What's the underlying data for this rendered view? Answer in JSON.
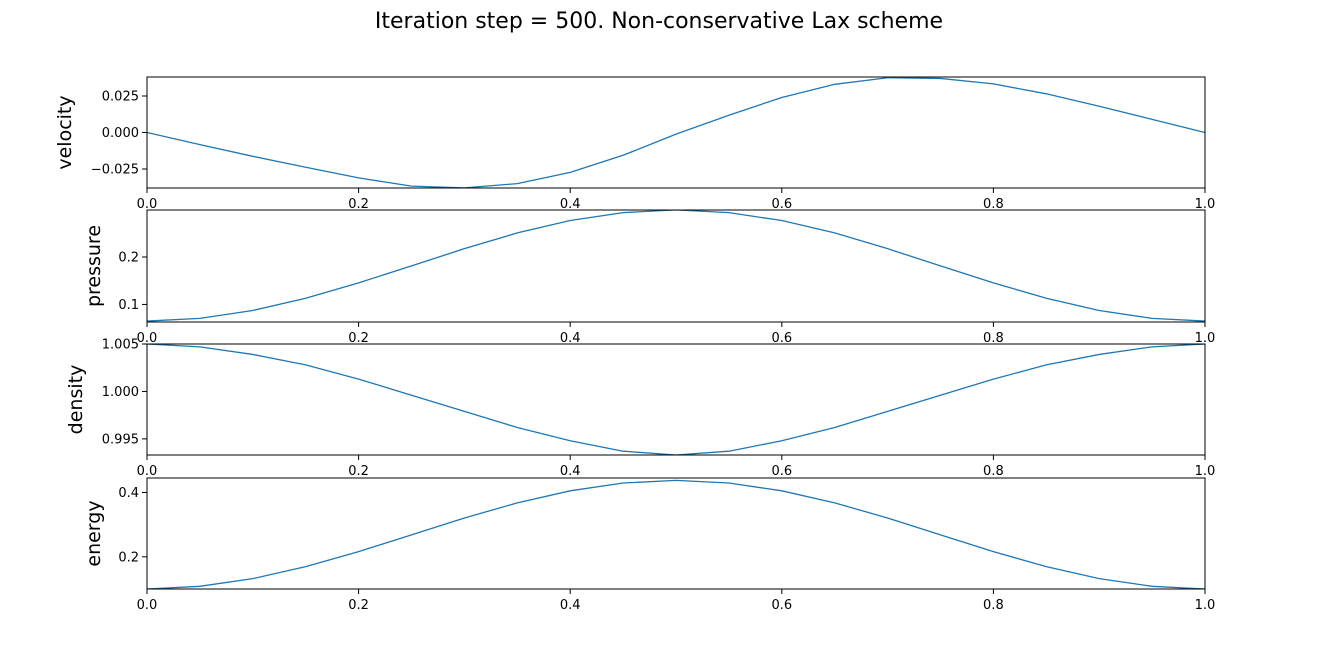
{
  "title": "Iteration step = 500. Non-conservative Lax scheme",
  "colors": {
    "line": "#1f77b4",
    "axes": "#000000",
    "background": "#ffffff"
  },
  "chart_data": [
    {
      "type": "line",
      "ylabel": "velocity",
      "xlim": [
        0,
        1
      ],
      "ylim": [
        -0.038,
        0.038
      ],
      "xticks": [
        0,
        0.2,
        0.4,
        0.6,
        0.8,
        1
      ],
      "xtick_labels": [
        "0.0",
        "0.2",
        "0.4",
        "0.6",
        "0.8",
        "1.0"
      ],
      "yticks": [
        -0.025,
        0,
        0.025
      ],
      "ytick_labels": [
        "−0.025",
        "0.000",
        "0.025"
      ],
      "grid": false,
      "series": [
        {
          "x": [
            0,
            0.05,
            0.1,
            0.15,
            0.2,
            0.25,
            0.3,
            0.35,
            0.4,
            0.45,
            0.5,
            0.55,
            0.6,
            0.65,
            0.7,
            0.75,
            0.8,
            0.85,
            0.9,
            0.95,
            1.0
          ],
          "values": [
            0,
            -0.0083,
            -0.0163,
            -0.0238,
            -0.0311,
            -0.0367,
            -0.0379,
            -0.035,
            -0.0273,
            -0.0156,
            -0.0011,
            0.0118,
            0.024,
            0.033,
            0.0375,
            0.037,
            0.0333,
            0.0265,
            0.018,
            0.009,
            0.0
          ]
        }
      ]
    },
    {
      "type": "line",
      "ylabel": "pressure",
      "xlim": [
        0,
        1
      ],
      "ylim": [
        0.063,
        0.299
      ],
      "xticks": [
        0,
        0.2,
        0.4,
        0.6,
        0.8,
        1
      ],
      "xtick_labels": [
        "0.0",
        "0.2",
        "0.4",
        "0.6",
        "0.8",
        "1.0"
      ],
      "yticks": [
        0.1,
        0.2
      ],
      "ytick_labels": [
        "0.1",
        "0.2"
      ],
      "grid": false,
      "series": [
        {
          "x": [
            0,
            0.05,
            0.1,
            0.15,
            0.2,
            0.25,
            0.3,
            0.35,
            0.4,
            0.45,
            0.5,
            0.55,
            0.6,
            0.65,
            0.7,
            0.75,
            0.8,
            0.85,
            0.9,
            0.95,
            1.0
          ],
          "values": [
            0.065,
            0.0706,
            0.0873,
            0.1131,
            0.1454,
            0.1812,
            0.2175,
            0.2507,
            0.2768,
            0.2935,
            0.2992,
            0.2935,
            0.2768,
            0.2507,
            0.2175,
            0.1812,
            0.1454,
            0.1131,
            0.0873,
            0.0706,
            0.065
          ]
        }
      ]
    },
    {
      "type": "line",
      "ylabel": "density",
      "xlim": [
        0,
        1
      ],
      "ylim": [
        0.9933,
        1.005
      ],
      "xticks": [
        0,
        0.2,
        0.4,
        0.6,
        0.8,
        1
      ],
      "xtick_labels": [
        "0.0",
        "0.2",
        "0.4",
        "0.6",
        "0.8",
        "1.0"
      ],
      "yticks": [
        0.995,
        1.0,
        1.005
      ],
      "ytick_labels": [
        "0.995",
        "1.000",
        "1.005"
      ],
      "grid": false,
      "series": [
        {
          "x": [
            0,
            0.05,
            0.1,
            0.15,
            0.2,
            0.25,
            0.3,
            0.35,
            0.4,
            0.45,
            0.5,
            0.55,
            0.6,
            0.65,
            0.7,
            0.75,
            0.8,
            0.85,
            0.9,
            0.95,
            1.0
          ],
          "values": [
            1.005,
            1.0047,
            1.0039,
            1.0028,
            1.0013,
            0.9996,
            0.9979,
            0.9962,
            0.9948,
            0.9937,
            0.9933,
            0.9937,
            0.9948,
            0.9962,
            0.9979,
            0.9996,
            1.0013,
            1.0028,
            1.0039,
            1.0047,
            1.005
          ]
        }
      ]
    },
    {
      "type": "line",
      "ylabel": "energy",
      "xlim": [
        0,
        1
      ],
      "ylim": [
        0.1,
        0.445
      ],
      "xticks": [
        0,
        0.2,
        0.4,
        0.6,
        0.8,
        1
      ],
      "xtick_labels": [
        "0.0",
        "0.2",
        "0.4",
        "0.6",
        "0.8",
        "1.0"
      ],
      "yticks": [
        0.2,
        0.4
      ],
      "ytick_labels": [
        "0.2",
        "0.4"
      ],
      "grid": false,
      "series": [
        {
          "x": [
            0,
            0.05,
            0.1,
            0.15,
            0.2,
            0.25,
            0.3,
            0.35,
            0.4,
            0.45,
            0.5,
            0.55,
            0.6,
            0.65,
            0.7,
            0.75,
            0.8,
            0.85,
            0.9,
            0.95,
            1.0
          ],
          "values": [
            0.1,
            0.1083,
            0.1322,
            0.1695,
            0.2162,
            0.2683,
            0.3207,
            0.3677,
            0.4052,
            0.4294,
            0.4376,
            0.4294,
            0.4052,
            0.3677,
            0.3207,
            0.2683,
            0.2162,
            0.1695,
            0.1322,
            0.1083,
            0.1
          ]
        }
      ]
    }
  ]
}
